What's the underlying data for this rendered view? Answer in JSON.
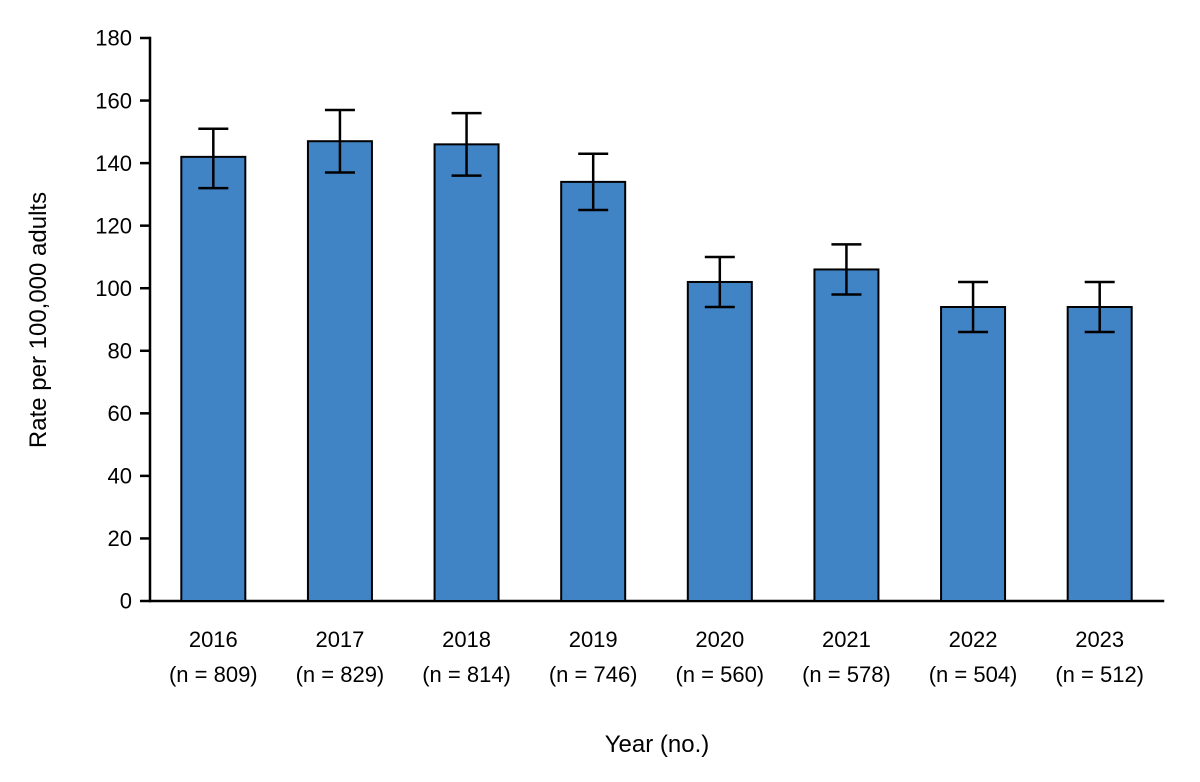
{
  "chart_data": {
    "type": "bar",
    "title": "",
    "xlabel": "Year (no.)",
    "ylabel": "Rate per 100,000 adults",
    "ylim": [
      0,
      180
    ],
    "yticks": [
      0,
      20,
      40,
      60,
      80,
      100,
      120,
      140,
      160,
      180
    ],
    "grid": false,
    "legend_position": "none",
    "categories": [
      "2016",
      "2017",
      "2018",
      "2019",
      "2020",
      "2021",
      "2022",
      "2023"
    ],
    "category_sublabels": [
      "(n = 809)",
      "(n = 829)",
      "(n = 814)",
      "(n = 746)",
      "(n = 560)",
      "(n = 578)",
      "(n = 504)",
      "(n = 512)"
    ],
    "values": [
      142,
      147,
      146,
      134,
      102,
      106,
      94,
      94
    ],
    "error_low": [
      132,
      137,
      136,
      125,
      94,
      98,
      86,
      86
    ],
    "error_high": [
      151,
      157,
      156,
      143,
      110,
      114,
      102,
      102
    ],
    "bar_color": "#4184c6",
    "bar_border_color": "#000000",
    "error_bar_color": "#000000",
    "axis_color": "#000000"
  }
}
